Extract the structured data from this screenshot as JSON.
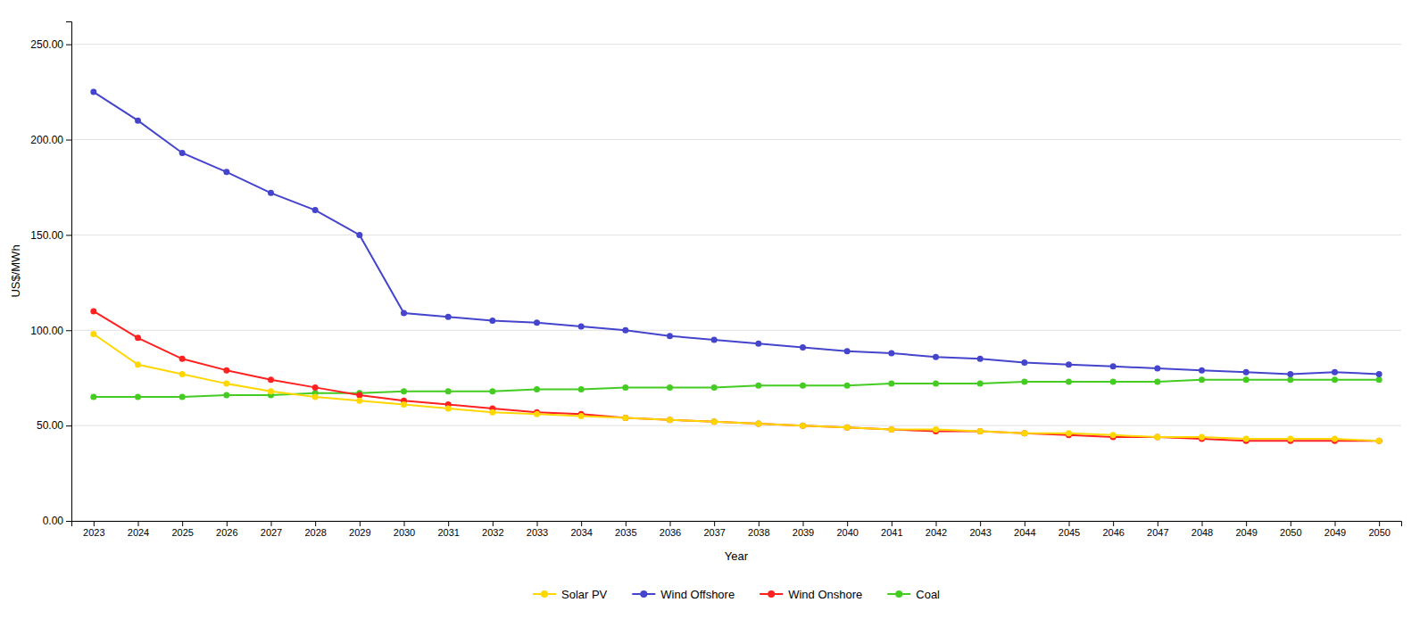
{
  "chart_data": {
    "type": "line",
    "x_label": "Year",
    "y_label": "US$/MWh",
    "categories": [
      "2023",
      "2024",
      "2025",
      "2026",
      "2027",
      "2028",
      "2029",
      "2030",
      "2031",
      "2032",
      "2033",
      "2034",
      "2035",
      "2036",
      "2037",
      "2038",
      "2039",
      "2040",
      "2041",
      "2042",
      "2043",
      "2044",
      "2045",
      "2046",
      "2047",
      "2048",
      "2049",
      "2050",
      "2049",
      "2050"
    ],
    "series": [
      {
        "name": "Solar PV",
        "color": "#FFD700",
        "marker": "circle",
        "values": [
          98,
          82,
          77,
          72,
          68,
          65,
          63,
          61,
          59,
          57,
          56,
          55,
          54,
          53,
          52,
          51,
          50,
          49,
          48,
          48,
          47,
          46,
          46,
          45,
          44,
          44,
          43,
          43,
          43,
          42
        ]
      },
      {
        "name": "Wind Offshore",
        "color": "#4444CC",
        "marker": "circle",
        "values": [
          225,
          210,
          193,
          183,
          172,
          163,
          150,
          109,
          107,
          105,
          104,
          102,
          100,
          97,
          95,
          93,
          91,
          89,
          88,
          86,
          85,
          83,
          82,
          81,
          80,
          79,
          78,
          77,
          78,
          77
        ]
      },
      {
        "name": "Wind Onshore",
        "color": "#FF2020",
        "marker": "circle",
        "values": [
          110,
          96,
          85,
          79,
          74,
          70,
          66,
          63,
          61,
          59,
          57,
          56,
          54,
          53,
          52,
          51,
          50,
          49,
          48,
          47,
          47,
          46,
          45,
          44,
          44,
          43,
          42,
          42,
          42,
          42
        ]
      },
      {
        "name": "Coal",
        "color": "#44CC22",
        "marker": "circle",
        "values": [
          65,
          65,
          65,
          66,
          66,
          67,
          67,
          68,
          68,
          68,
          69,
          69,
          70,
          70,
          70,
          71,
          71,
          71,
          72,
          72,
          72,
          73,
          73,
          73,
          73,
          74,
          74,
          74,
          74,
          74
        ]
      }
    ],
    "ylim": [
      0,
      262
    ],
    "yticks": [
      {
        "value": 0,
        "label": "0.00"
      },
      {
        "value": 50,
        "label": "50.00"
      },
      {
        "value": 100,
        "label": "100.00"
      },
      {
        "value": 150,
        "label": "150.00"
      },
      {
        "value": 200,
        "label": "200.00"
      },
      {
        "value": 250,
        "label": "250.00"
      }
    ],
    "grid": true,
    "legend": "bottom"
  }
}
